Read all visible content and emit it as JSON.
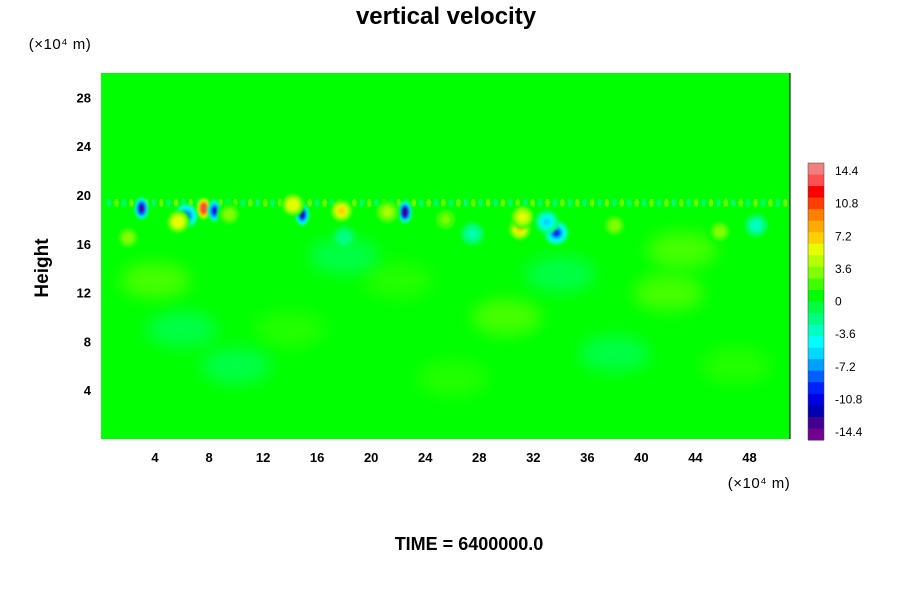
{
  "chart_data": {
    "type": "heatmap",
    "title": "vertical velocity",
    "ylabel": "Height",
    "xlabel": "",
    "x_unit": "(×10⁴ m)",
    "y_unit": "(×10⁴ m)",
    "xlim": [
      0,
      51
    ],
    "ylim": [
      0,
      30
    ],
    "x_ticks": [
      4,
      8,
      12,
      16,
      20,
      24,
      28,
      32,
      36,
      40,
      44,
      48
    ],
    "y_ticks": [
      4,
      8,
      12,
      16,
      20,
      24,
      28
    ],
    "colorbar": {
      "min": -14.4,
      "max": 14.4,
      "ticks": [
        14.4,
        10.8,
        7.2,
        3.6,
        0,
        -3.6,
        -7.2,
        -10.8,
        -14.4
      ],
      "colors_high_to_low": [
        "#f08080",
        "#ff5050",
        "#ff0000",
        "#ff4000",
        "#ff8000",
        "#ffaa00",
        "#ffd000",
        "#e6ff00",
        "#b4ff00",
        "#80ff00",
        "#40ff00",
        "#00ff00",
        "#00ff40",
        "#00ff80",
        "#00ffc0",
        "#00ffff",
        "#00d8ff",
        "#00a0ff",
        "#0060ff",
        "#0020ff",
        "#0000e0",
        "#0000b0",
        "#400090",
        "#700090"
      ]
    },
    "background_value": 0,
    "features": [
      {
        "x": 3.0,
        "y": 18.9,
        "value": -12.5
      },
      {
        "x": 6.3,
        "y": 18.3,
        "value": -8.0
      },
      {
        "x": 7.6,
        "y": 18.9,
        "value": 13.0
      },
      {
        "x": 8.4,
        "y": 18.7,
        "value": -10.5
      },
      {
        "x": 5.7,
        "y": 17.8,
        "value": 6.0
      },
      {
        "x": 14.9,
        "y": 18.4,
        "value": -11.5
      },
      {
        "x": 14.2,
        "y": 19.2,
        "value": 6.0
      },
      {
        "x": 17.8,
        "y": 18.7,
        "value": 7.0
      },
      {
        "x": 22.5,
        "y": 18.6,
        "value": -13.0
      },
      {
        "x": 21.2,
        "y": 18.6,
        "value": 4.0
      },
      {
        "x": 31.0,
        "y": 17.2,
        "value": 6.5
      },
      {
        "x": 31.2,
        "y": 18.2,
        "value": 5.5
      },
      {
        "x": 33.7,
        "y": 16.9,
        "value": -8.5
      },
      {
        "x": 33.0,
        "y": 17.8,
        "value": -5.0
      },
      {
        "x": 9.5,
        "y": 18.4,
        "value": 3.5
      },
      {
        "x": 25.5,
        "y": 18.0,
        "value": 2.5
      },
      {
        "x": 38.0,
        "y": 17.5,
        "value": 3.0
      },
      {
        "x": 45.8,
        "y": 17.0,
        "value": 3.5
      },
      {
        "x": 48.5,
        "y": 17.5,
        "value": -3.0
      },
      {
        "x": 2.0,
        "y": 16.5,
        "value": 3.0
      },
      {
        "x": 18.0,
        "y": 16.5,
        "value": -2.0
      },
      {
        "x": 27.5,
        "y": 16.8,
        "value": -2.5
      }
    ],
    "wave_band": {
      "y_min": 18.2,
      "y_max": 19.9,
      "amplitude": 3.0
    },
    "grid": false,
    "legend": "right"
  },
  "footer": {
    "time_label": "TIME = 6400000.0"
  }
}
